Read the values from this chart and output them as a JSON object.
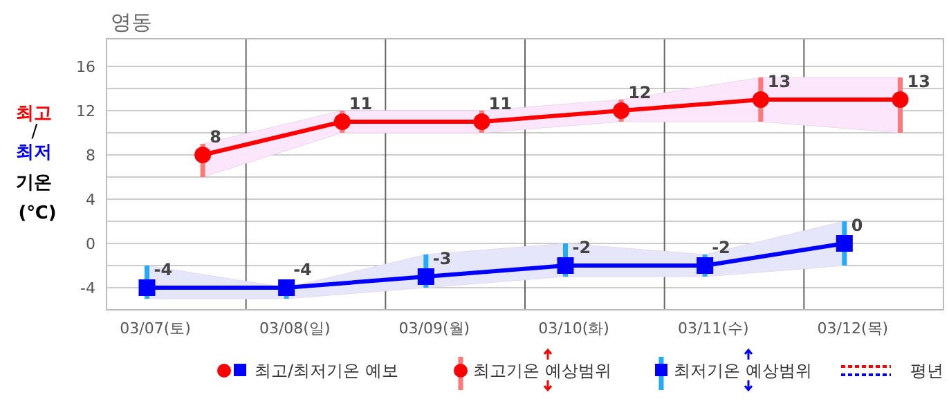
{
  "chart_data": {
    "type": "line",
    "title": "영동",
    "ylabel": "최고/최저 기온 (℃)",
    "categories": [
      "03/07(토)",
      "03/08(일)",
      "03/09(월)",
      "03/10(화)",
      "03/11(수)",
      "03/12(목)"
    ],
    "series": [
      {
        "name": "최고기온 예상범위",
        "color": "#ff0000",
        "marker": "circle",
        "values": [
          8,
          11,
          11,
          12,
          13,
          13
        ],
        "errors": [
          [
            6,
            9
          ],
          [
            10,
            12
          ],
          [
            10,
            12
          ],
          [
            11,
            13
          ],
          [
            11,
            15
          ],
          [
            10,
            15
          ]
        ],
        "lower": [
          6,
          10,
          10,
          11,
          11,
          10
        ],
        "upper": [
          9,
          12,
          12,
          13,
          15,
          15
        ]
      },
      {
        "name": "최저기온 예상범위",
        "color": "#0000ff",
        "marker": "square",
        "values": [
          -4,
          -4,
          -3,
          -2,
          -2,
          0
        ],
        "errors": [
          [
            -5,
            -2
          ],
          [
            -5,
            -4
          ],
          [
            -4,
            -1
          ],
          [
            -3,
            0
          ],
          [
            -3,
            -1
          ],
          [
            -2,
            2
          ]
        ],
        "lower": [
          -5,
          -5,
          -4,
          -3,
          -3,
          -2
        ],
        "upper": [
          -2,
          -4,
          -1,
          0,
          -1,
          2
        ]
      }
    ],
    "annotations": [
      "최고/최저기온 예보",
      "평년"
    ],
    "ylim": [
      -6,
      18.5
    ],
    "yticks": [
      -4,
      {
        "value": -2,
        "label": null
      },
      0,
      {
        "value": 2,
        "label": null
      },
      4,
      {
        "value": 6,
        "label": null
      },
      8,
      {
        "value": 10,
        "label": null
      },
      12,
      {
        "value": 14,
        "label": null
      },
      16
    ],
    "grid": true,
    "legend": "bottom",
    "data_labels": true
  }
}
